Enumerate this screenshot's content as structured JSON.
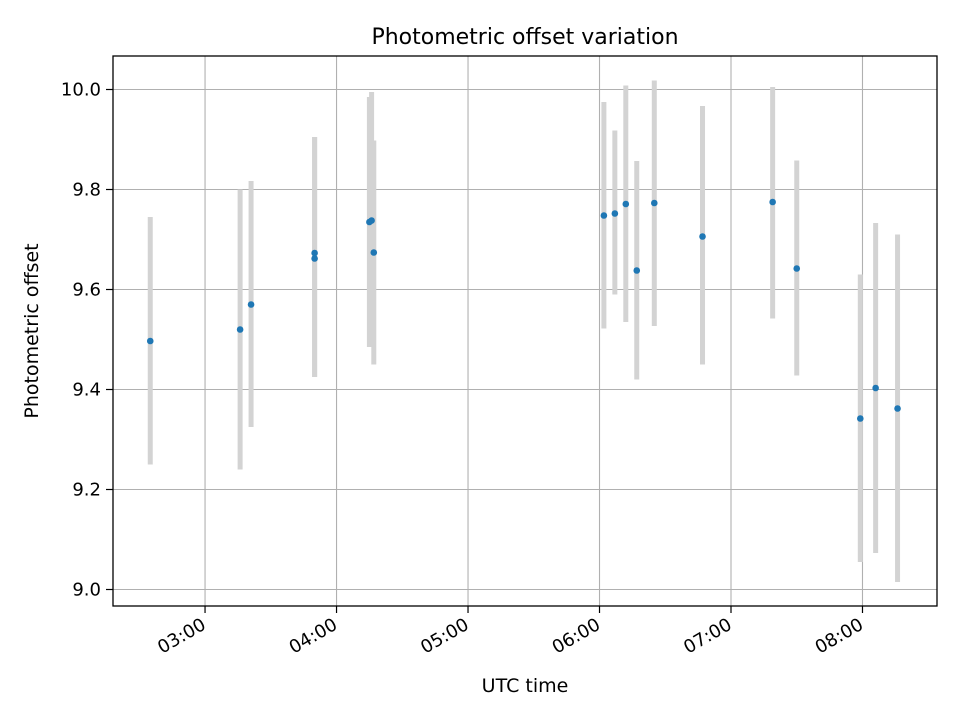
{
  "chart_data": {
    "type": "scatter",
    "title": "Photometric offset variation",
    "xlabel": "UTC time",
    "ylabel": "Photometric offset",
    "x_axis_type": "time",
    "xlim": [
      "02:18",
      "08:34"
    ],
    "ylim": [
      8.967,
      10.067
    ],
    "x_ticks": [
      "03:00",
      "04:00",
      "05:00",
      "06:00",
      "07:00",
      "08:00"
    ],
    "y_ticks": [
      "9.0",
      "9.2",
      "9.4",
      "9.6",
      "9.8",
      "10.0"
    ],
    "grid": true,
    "legend": "none",
    "marker_color": "#1f77b4",
    "errorbar_color": "#d3d3d3",
    "points": [
      {
        "x": "02:35",
        "y": 9.497,
        "ylo": 9.25,
        "yhi": 9.745
      },
      {
        "x": "03:16",
        "y": 9.52,
        "ylo": 9.24,
        "yhi": 9.8
      },
      {
        "x": "03:21",
        "y": 9.57,
        "ylo": 9.325,
        "yhi": 9.817
      },
      {
        "x": "03:50",
        "y": 9.673,
        "ylo": 9.425,
        "yhi": 9.905
      },
      {
        "x": "03:50",
        "y": 9.662,
        "ylo": 9.425,
        "yhi": 9.905
      },
      {
        "x": "04:15",
        "y": 9.735,
        "ylo": 9.485,
        "yhi": 9.985
      },
      {
        "x": "04:16",
        "y": 9.738,
        "ylo": 9.49,
        "yhi": 9.995
      },
      {
        "x": "04:17",
        "y": 9.674,
        "ylo": 9.45,
        "yhi": 9.898
      },
      {
        "x": "06:02",
        "y": 9.748,
        "ylo": 9.522,
        "yhi": 9.975
      },
      {
        "x": "06:07",
        "y": 9.752,
        "ylo": 9.59,
        "yhi": 9.918
      },
      {
        "x": "06:12",
        "y": 9.771,
        "ylo": 9.535,
        "yhi": 10.008
      },
      {
        "x": "06:17",
        "y": 9.638,
        "ylo": 9.42,
        "yhi": 9.857
      },
      {
        "x": "06:25",
        "y": 9.773,
        "ylo": 9.527,
        "yhi": 10.018
      },
      {
        "x": "06:47",
        "y": 9.706,
        "ylo": 9.45,
        "yhi": 9.967
      },
      {
        "x": "07:19",
        "y": 9.775,
        "ylo": 9.542,
        "yhi": 10.005
      },
      {
        "x": "07:30",
        "y": 9.642,
        "ylo": 9.428,
        "yhi": 9.858
      },
      {
        "x": "07:59",
        "y": 9.342,
        "ylo": 9.055,
        "yhi": 9.63
      },
      {
        "x": "08:06",
        "y": 9.403,
        "ylo": 9.073,
        "yhi": 9.733
      },
      {
        "x": "08:16",
        "y": 9.362,
        "ylo": 9.015,
        "yhi": 9.71
      }
    ]
  }
}
